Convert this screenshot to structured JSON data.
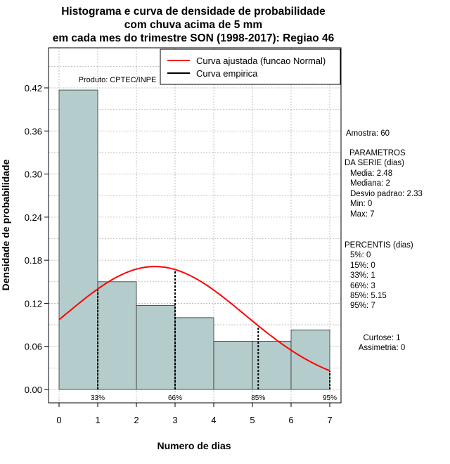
{
  "chart_data": {
    "type": "bar",
    "title_lines": [
      "Histograma e curva de densidade de probabilidade",
      "com chuva acima de 5 mm",
      "em cada mes do trimestre SON (1998-2017): Regiao 46"
    ],
    "xlabel": "Numero de dias",
    "ylabel": "Densidade de probabilidade",
    "xlim": [
      0,
      7
    ],
    "ylim": [
      0,
      0.42
    ],
    "x_ticks": [
      "0",
      "1",
      "2",
      "3",
      "4",
      "5",
      "6",
      "7"
    ],
    "y_ticks": [
      "0.00",
      "0.06",
      "0.12",
      "0.18",
      "0.24",
      "0.30",
      "0.36",
      "0.42"
    ],
    "bins": [
      {
        "from": 0,
        "to": 1,
        "density": 0.417
      },
      {
        "from": 1,
        "to": 2,
        "density": 0.15
      },
      {
        "from": 2,
        "to": 3,
        "density": 0.117
      },
      {
        "from": 3,
        "to": 4,
        "density": 0.1
      },
      {
        "from": 4,
        "to": 5,
        "density": 0.067
      },
      {
        "from": 5,
        "to": 6,
        "density": 0.067
      },
      {
        "from": 6,
        "to": 7,
        "density": 0.083
      }
    ],
    "normal_curve": {
      "mean": 2.48,
      "sd": 2.33
    },
    "percentile_markers": [
      {
        "label": "33%",
        "x": 1
      },
      {
        "label": "66%",
        "x": 3
      },
      {
        "label": "85%",
        "x": 5.15
      },
      {
        "label": "95%",
        "x": 7
      }
    ],
    "legend": [
      {
        "label": "Curva ajustada (funcao Normal)",
        "color": "#ff0000"
      },
      {
        "label": "Curva empirica",
        "color": "#000000"
      }
    ],
    "product_label": "Produto: CPTEC/INPE",
    "colors": {
      "bar_fill": "#b5cccc",
      "curve": "#ff0000",
      "grid": "#b3b3b3"
    }
  },
  "stats_panel": {
    "sample": "Amostra: 60",
    "params_header_1": "PARAMETROS",
    "params_header_2": "DA SERIE (dias)",
    "params": [
      "Media: 2.48",
      "Mediana: 2",
      "Desvio padrao: 2.33",
      "Min: 0",
      "Max: 7"
    ],
    "percentis_header": "PERCENTIS (dias)",
    "percentis": [
      "5%: 0",
      "15%: 0",
      "33%: 1",
      "66%: 3",
      "85%: 5.15",
      "95%: 7"
    ],
    "curtose": "Curtose: 1",
    "assimetria": "Assimetria: 0"
  }
}
